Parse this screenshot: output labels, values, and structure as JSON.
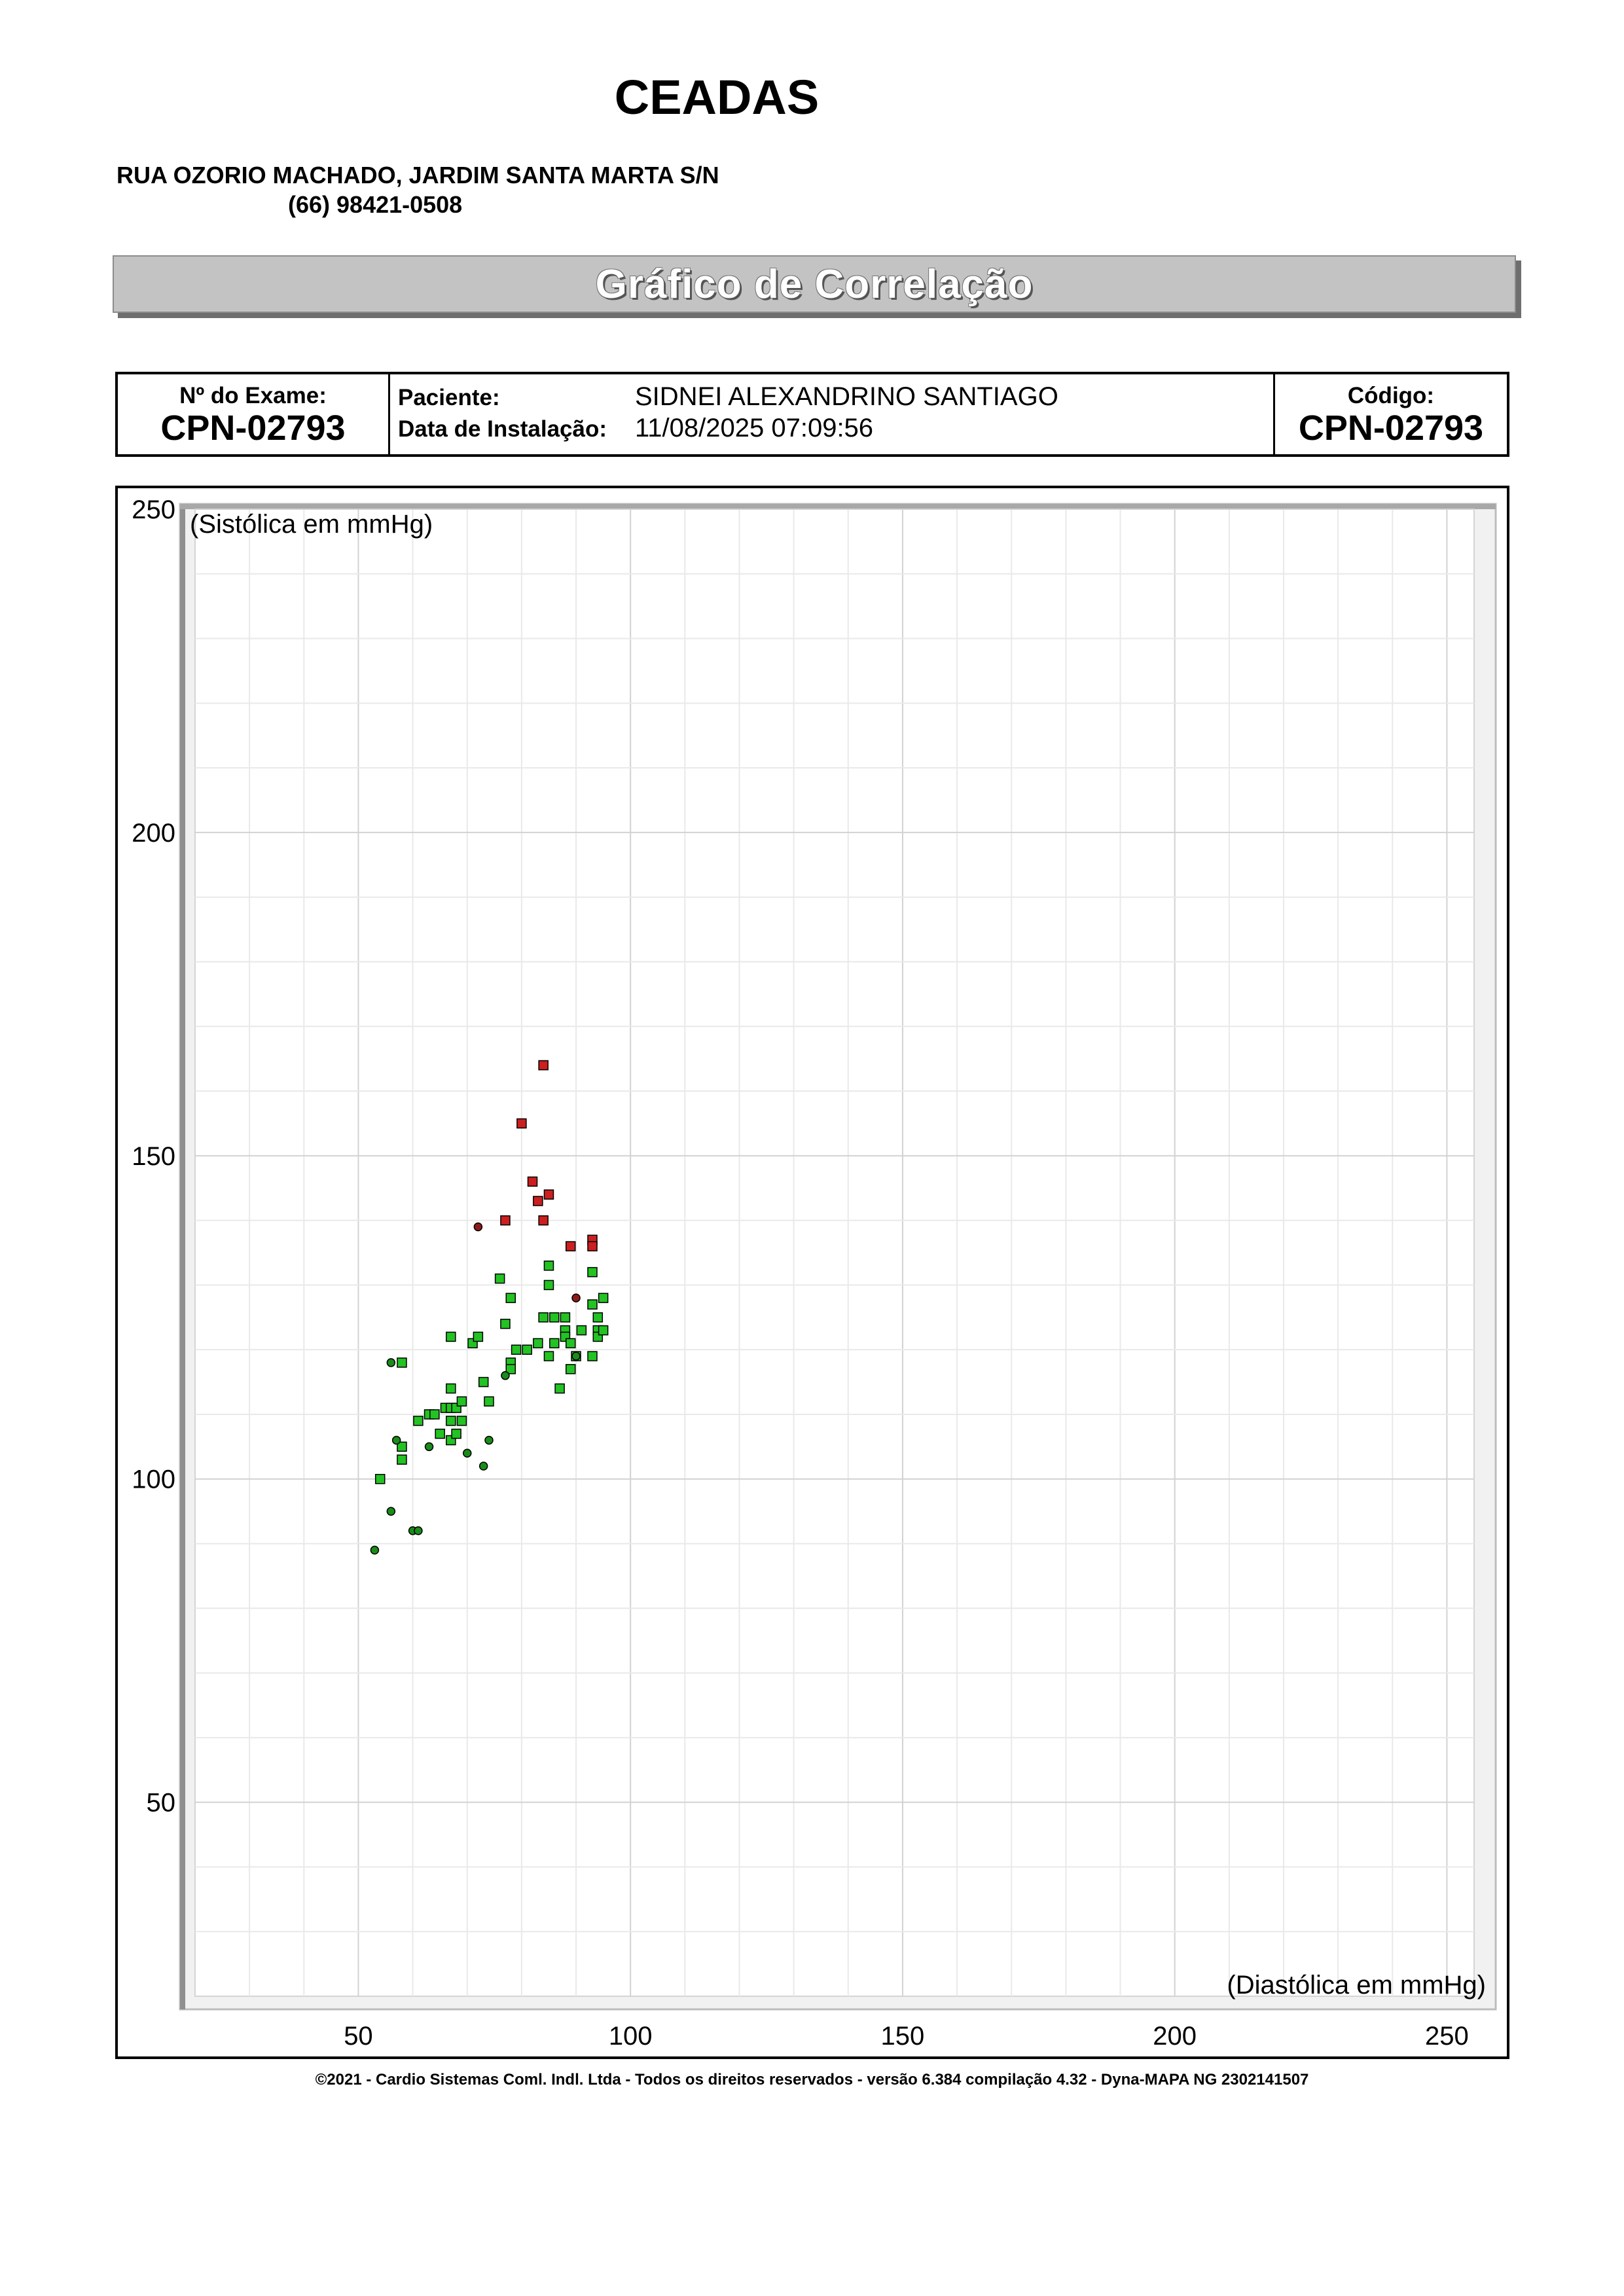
{
  "header": {
    "clinic_name": "CEADAS",
    "address": "RUA OZORIO MACHADO, JARDIM SANTA MARTA S/N",
    "phone": "(66) 98421-0508"
  },
  "banner": {
    "title": "Gráfico de Correlação"
  },
  "info": {
    "exam_label": "Nº do Exame:",
    "exam_value": "CPN-02793",
    "patient_label": "Paciente:",
    "patient_value": "SIDNEI ALEXANDRINO SANTIAGO",
    "install_label": "Data de Instalação:",
    "install_value": "11/08/2025 07:09:56",
    "code_label": "Código:",
    "code_value": "CPN-02793"
  },
  "chart_data": {
    "type": "scatter",
    "ylabel": "(Sistólica em mmHg)",
    "xlabel": "(Diastólica em mmHg)",
    "xlim": [
      20,
      255
    ],
    "ylim": [
      20,
      250
    ],
    "x_ticks": [
      50,
      100,
      150,
      200,
      250
    ],
    "y_ticks": [
      50,
      100,
      150,
      200,
      250
    ],
    "grid": true,
    "colors": {
      "normal": "#22c322",
      "night": "#1a8c1a",
      "high": "#cc1f1f",
      "high_night": "#8e1a1a"
    },
    "series": [
      {
        "marker": "square",
        "color": "#22c322",
        "points": [
          [
            54,
            100
          ],
          [
            58,
            118
          ],
          [
            58,
            105
          ],
          [
            58,
            103
          ],
          [
            61,
            109
          ],
          [
            63,
            110
          ],
          [
            64,
            110
          ],
          [
            65,
            107
          ],
          [
            66,
            111
          ],
          [
            67,
            114
          ],
          [
            67,
            111
          ],
          [
            67,
            109
          ],
          [
            67,
            106
          ],
          [
            68,
            111
          ],
          [
            68,
            107
          ],
          [
            69,
            112
          ],
          [
            69,
            109
          ],
          [
            67,
            122
          ],
          [
            71,
            121
          ],
          [
            72,
            122
          ],
          [
            73,
            115
          ],
          [
            74,
            112
          ],
          [
            76,
            131
          ],
          [
            77,
            124
          ],
          [
            78,
            128
          ],
          [
            78,
            118
          ],
          [
            78,
            117
          ],
          [
            79,
            120
          ],
          [
            81,
            120
          ],
          [
            83,
            121
          ],
          [
            84,
            125
          ],
          [
            85,
            119
          ],
          [
            85,
            130
          ],
          [
            85,
            133
          ],
          [
            86,
            125
          ],
          [
            86,
            121
          ],
          [
            87,
            114
          ],
          [
            88,
            125
          ],
          [
            88,
            123
          ],
          [
            88,
            122
          ],
          [
            89,
            121
          ],
          [
            89,
            117
          ],
          [
            90,
            119
          ],
          [
            91,
            123
          ],
          [
            93,
            132
          ],
          [
            93,
            127
          ],
          [
            93,
            119
          ],
          [
            94,
            125
          ],
          [
            94,
            123
          ],
          [
            94,
            122
          ],
          [
            95,
            128
          ],
          [
            95,
            123
          ]
        ]
      },
      {
        "marker": "circle",
        "color": "#1a8c1a",
        "points": [
          [
            53,
            89
          ],
          [
            56,
            95
          ],
          [
            56,
            118
          ],
          [
            57,
            106
          ],
          [
            60,
            92
          ],
          [
            61,
            92
          ],
          [
            63,
            105
          ],
          [
            70,
            104
          ],
          [
            73,
            102
          ],
          [
            74,
            106
          ],
          [
            77,
            116
          ],
          [
            90,
            119
          ]
        ]
      },
      {
        "marker": "square",
        "color": "#cc1f1f",
        "points": [
          [
            80,
            155
          ],
          [
            82,
            146
          ],
          [
            83,
            143
          ],
          [
            84,
            164
          ],
          [
            84,
            140
          ],
          [
            85,
            144
          ],
          [
            77,
            140
          ],
          [
            89,
            136
          ],
          [
            93,
            137
          ],
          [
            93,
            136
          ]
        ]
      },
      {
        "marker": "circle",
        "color": "#8e1a1a",
        "points": [
          [
            72,
            139
          ],
          [
            90,
            128
          ]
        ]
      }
    ]
  },
  "footer": {
    "text": "©2021 - Cardio Sistemas Coml. Indl. Ltda - Todos os direitos reservados - versão 6.384 compilação 4.32 - Dyna-MAPA NG 2302141507"
  }
}
